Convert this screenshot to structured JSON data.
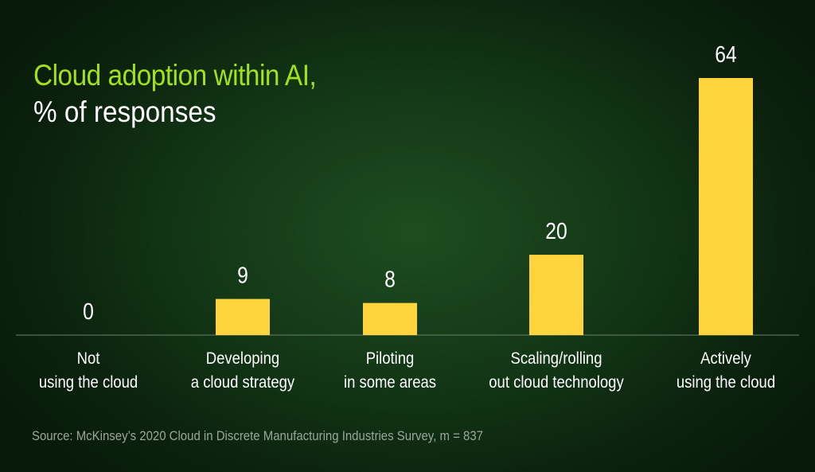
{
  "title": "Cloud adoption within AI,",
  "subtitle": "% of responses",
  "source": "Source: McKinsey’s 2020 Cloud in Discrete Manufacturing Industries Survey, m = 837",
  "colors": {
    "bar": "#fdd43c",
    "title": "#a3e11b",
    "axis": "#6b7f6b"
  },
  "chart_data": {
    "type": "bar",
    "title": "Cloud adoption within AI, % of responses",
    "xlabel": "",
    "ylabel": "% of responses",
    "categories": [
      [
        "Not",
        "using the cloud"
      ],
      [
        "Developing",
        "a cloud strategy"
      ],
      [
        "Piloting",
        "in some areas"
      ],
      [
        "Scaling/rolling",
        "out cloud technology"
      ],
      [
        "Actively",
        "using the cloud"
      ]
    ],
    "values": [
      0,
      9,
      8,
      20,
      64
    ],
    "value_labels": [
      "0",
      "9",
      "8",
      "20",
      "64"
    ],
    "ylim": [
      0,
      64
    ],
    "grid": false
  }
}
